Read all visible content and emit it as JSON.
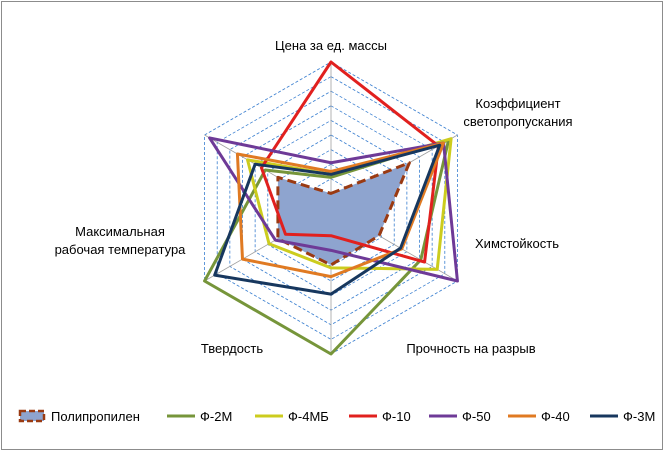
{
  "chart_data": {
    "type": "radar",
    "axes": [
      "Цена за ед. массы",
      [
        "Коэффициент",
        "светопропускания"
      ],
      "Химстойкость",
      "Прочность на разрыв",
      "Твердость",
      [
        "Максимальная",
        "рабочая температура"
      ]
    ],
    "range": [
      0,
      10
    ],
    "grid_levels": 10,
    "series": [
      {
        "name": "Полипропилен",
        "color": "#9a3a12",
        "fill": "#8ea4cf",
        "style": "dashed-filled",
        "values": [
          1.0,
          6.2,
          3.8,
          3.9,
          4.2,
          4.2
        ]
      },
      {
        "name": "Ф-2М",
        "color": "#76953a",
        "values": [
          2.1,
          9.3,
          7.1,
          10.0,
          10.0,
          5.2
        ]
      },
      {
        "name": "Ф-4МБ",
        "color": "#cccc1e",
        "values": [
          2.3,
          9.5,
          8.4,
          4.1,
          4.9,
          6.6
        ]
      },
      {
        "name": "Ф-10",
        "color": "#e1201e",
        "values": [
          10.0,
          8.5,
          7.4,
          1.9,
          3.6,
          5.5
        ]
      },
      {
        "name": "Ф-50",
        "color": "#6e3a97",
        "values": [
          3.1,
          8.9,
          10.0,
          2.9,
          4.4,
          9.6
        ]
      },
      {
        "name": "Ф-40",
        "color": "#e07a22",
        "values": [
          2.5,
          8.9,
          5.6,
          4.7,
          7.0,
          7.4
        ]
      },
      {
        "name": "Ф-3М",
        "color": "#17375e",
        "values": [
          2.3,
          8.6,
          5.5,
          5.9,
          9.2,
          6.0
        ]
      }
    ],
    "legend": "bottom"
  }
}
